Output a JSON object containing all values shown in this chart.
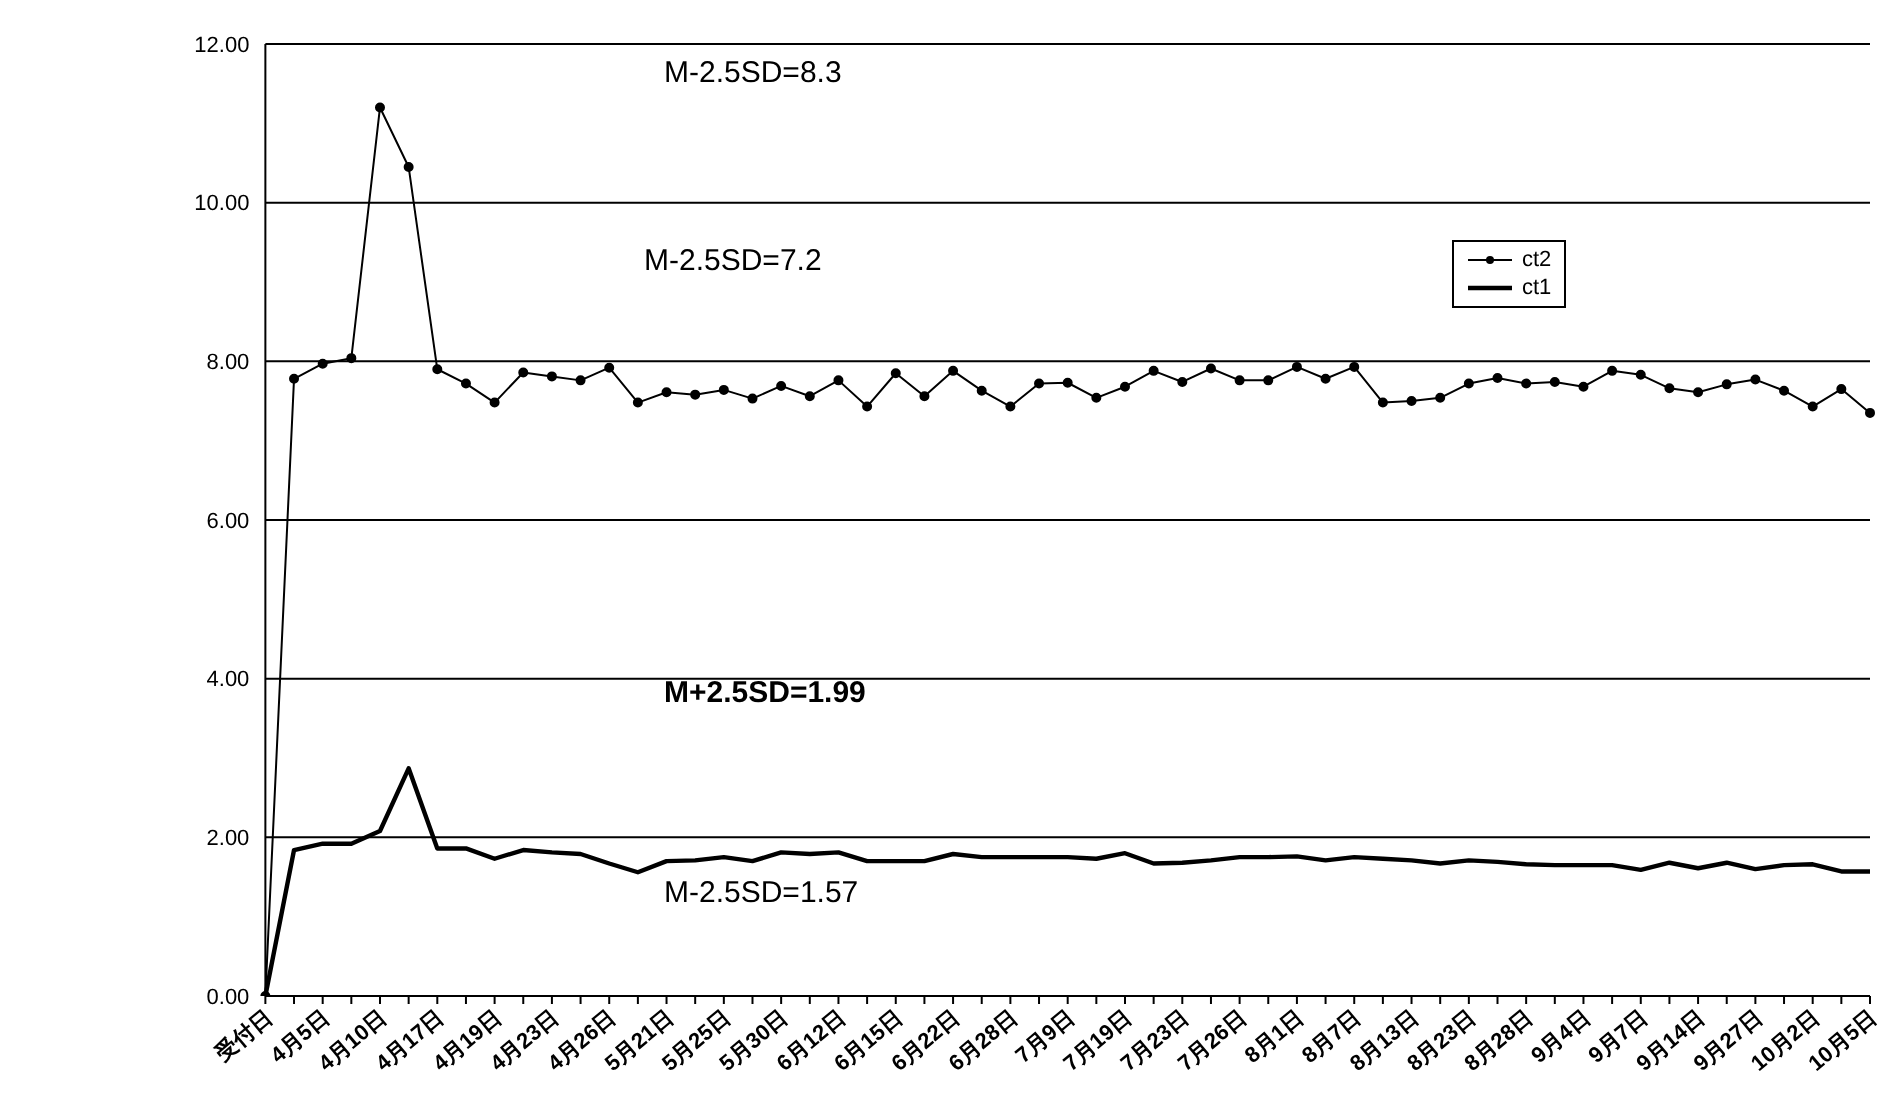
{
  "chart_data": {
    "type": "line",
    "categories": [
      "受付日",
      null,
      "4月5日",
      null,
      "4月10日",
      null,
      "4月17日",
      null,
      "4月19日",
      null,
      "4月23日",
      null,
      "4月26日",
      null,
      "5月21日",
      null,
      "5月25日",
      null,
      "5月30日",
      null,
      "6月12日",
      null,
      "6月15日",
      null,
      "6月22日",
      null,
      "6月28日",
      null,
      "7月9日",
      null,
      "7月19日",
      null,
      "7月23日",
      null,
      "7月26日",
      null,
      "8月1日",
      null,
      "8月7日",
      null,
      "8月13日",
      null,
      "8月23日",
      null,
      "8月28日",
      null,
      "9月4日",
      null,
      "9月7日",
      null,
      "9月14日",
      null,
      "9月27日",
      null,
      "10月2日",
      null,
      "10月5日"
    ],
    "series": [
      {
        "name": "ct2",
        "color": "#000000",
        "marker": "circle",
        "values": [
          0,
          7.78,
          7.97,
          8.04,
          11.2,
          10.45,
          7.9,
          7.72,
          7.48,
          7.86,
          7.81,
          7.76,
          7.92,
          7.48,
          7.61,
          7.58,
          7.64,
          7.53,
          7.69,
          7.56,
          7.76,
          7.43,
          7.85,
          7.56,
          7.88,
          7.63,
          7.43,
          7.72,
          7.73,
          7.54,
          7.68,
          7.88,
          7.74,
          7.91,
          7.76,
          7.76,
          7.93,
          7.78,
          7.93,
          7.48,
          7.5,
          7.54,
          7.72,
          7.79,
          7.72,
          7.74,
          7.68,
          7.88,
          7.83,
          7.66,
          7.61,
          7.71,
          7.77,
          7.63,
          7.43,
          7.65,
          7.35
        ]
      },
      {
        "name": "ct1",
        "color": "#000000",
        "marker": "none",
        "values": [
          0,
          1.84,
          1.92,
          1.92,
          2.08,
          2.87,
          1.86,
          1.86,
          1.73,
          1.84,
          1.81,
          1.79,
          1.67,
          1.56,
          1.7,
          1.71,
          1.75,
          1.7,
          1.81,
          1.79,
          1.81,
          1.7,
          1.7,
          1.7,
          1.79,
          1.75,
          1.75,
          1.75,
          1.75,
          1.73,
          1.8,
          1.67,
          1.68,
          1.71,
          1.75,
          1.75,
          1.76,
          1.71,
          1.75,
          1.73,
          1.71,
          1.67,
          1.71,
          1.69,
          1.66,
          1.65,
          1.65,
          1.65,
          1.59,
          1.68,
          1.61,
          1.68,
          1.6,
          1.65,
          1.66,
          1.57,
          1.57
        ]
      }
    ],
    "ylim": [
      0,
      12
    ],
    "yticks": [
      {
        "value": 0,
        "label": "0.00"
      },
      {
        "value": 2,
        "label": "2.00"
      },
      {
        "value": 4,
        "label": "4.00"
      },
      {
        "value": 6,
        "label": "6.00"
      },
      {
        "value": 8,
        "label": "8.00"
      },
      {
        "value": 10,
        "label": "10.00"
      },
      {
        "value": 12,
        "label": "12.00"
      }
    ],
    "grid": "y",
    "legend": "top right",
    "annotations": [
      "M-2.5SD=8.3",
      "M-2.5SD=7.2",
      "M+2.5SD=1.99",
      "M-2.5SD=1.57"
    ]
  }
}
